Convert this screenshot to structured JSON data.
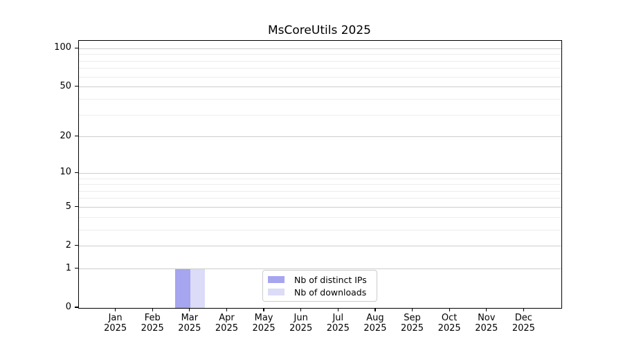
{
  "chart_data": {
    "type": "bar",
    "title": "MsCoreUtils 2025",
    "yscale": "log1p",
    "ylim": [
      0,
      115
    ],
    "y_ticks": [
      0,
      1,
      2,
      5,
      10,
      20,
      50,
      100
    ],
    "y_minor_gridlines": [
      3,
      4,
      6,
      7,
      8,
      9,
      30,
      40,
      60,
      70,
      80,
      90
    ],
    "grid": true,
    "legend_position": "lower center",
    "x_categories": [
      {
        "month": "Jan",
        "year": "2025"
      },
      {
        "month": "Feb",
        "year": "2025"
      },
      {
        "month": "Mar",
        "year": "2025"
      },
      {
        "month": "Apr",
        "year": "2025"
      },
      {
        "month": "May",
        "year": "2025"
      },
      {
        "month": "Jun",
        "year": "2025"
      },
      {
        "month": "Jul",
        "year": "2025"
      },
      {
        "month": "Aug",
        "year": "2025"
      },
      {
        "month": "Sep",
        "year": "2025"
      },
      {
        "month": "Oct",
        "year": "2025"
      },
      {
        "month": "Nov",
        "year": "2025"
      },
      {
        "month": "Dec",
        "year": "2025"
      }
    ],
    "series": [
      {
        "name": "Nb of distinct IPs",
        "color": "#a5a5f0",
        "values": [
          0,
          0,
          1,
          0,
          0,
          0,
          0,
          0,
          0,
          0,
          0,
          0
        ]
      },
      {
        "name": "Nb of downloads",
        "color": "#dcdcf8",
        "values": [
          0,
          0,
          1,
          0,
          0,
          0,
          0,
          0,
          0,
          0,
          0,
          0
        ]
      }
    ],
    "colors": {
      "background": "#ffffff",
      "axis": "#000000",
      "major_grid": "#cdcdcd",
      "minor_grid": "#ededed",
      "tick_label": "#000000",
      "legend_border": "#cccccc"
    }
  }
}
